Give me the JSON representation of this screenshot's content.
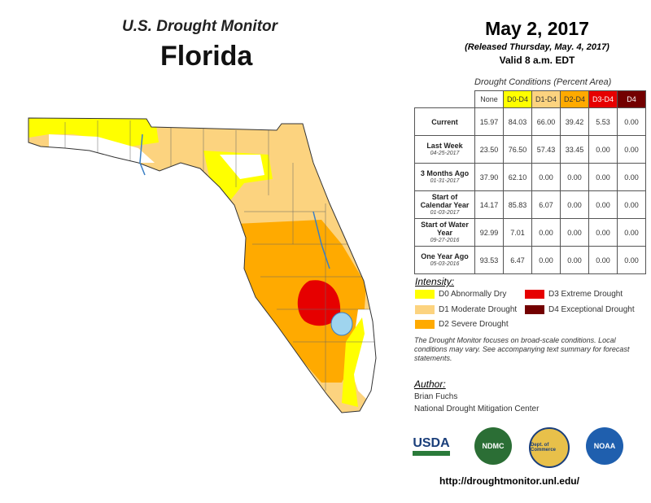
{
  "header": {
    "title": "U.S. Drought Monitor",
    "state": "Florida",
    "date": "May 2, 2017",
    "released": "(Released Thursday, May. 4, 2017)",
    "valid": "Valid 8 a.m. EDT"
  },
  "table": {
    "caption": "Drought Conditions (Percent Area)",
    "columns": [
      {
        "label": "None",
        "color": "#ffffff"
      },
      {
        "label": "D0-D4",
        "color": "#ffff00"
      },
      {
        "label": "D1-D4",
        "color": "#fcd37f"
      },
      {
        "label": "D2-D4",
        "color": "#ffaa00"
      },
      {
        "label": "D3-D4",
        "color": "#e60000"
      },
      {
        "label": "D4",
        "color": "#730000"
      }
    ],
    "rows": [
      {
        "label": "Current",
        "date": "",
        "values": [
          "15.97",
          "84.03",
          "66.00",
          "39.42",
          "5.53",
          "0.00"
        ]
      },
      {
        "label": "Last Week",
        "date": "04-25-2017",
        "values": [
          "23.50",
          "76.50",
          "57.43",
          "33.45",
          "0.00",
          "0.00"
        ]
      },
      {
        "label": "3 Months Ago",
        "date": "01-31-2017",
        "values": [
          "37.90",
          "62.10",
          "0.00",
          "0.00",
          "0.00",
          "0.00"
        ]
      },
      {
        "label": "Start of Calendar Year",
        "date": "01-03-2017",
        "values": [
          "14.17",
          "85.83",
          "6.07",
          "0.00",
          "0.00",
          "0.00"
        ]
      },
      {
        "label": "Start of Water Year",
        "date": "09-27-2016",
        "values": [
          "92.99",
          "7.01",
          "0.00",
          "0.00",
          "0.00",
          "0.00"
        ]
      },
      {
        "label": "One Year Ago",
        "date": "05-03-2016",
        "values": [
          "93.53",
          "6.47",
          "0.00",
          "0.00",
          "0.00",
          "0.00"
        ]
      }
    ]
  },
  "legend": {
    "title": "Intensity:",
    "items": [
      {
        "label": "D0 Abnormally Dry",
        "color": "#ffff00"
      },
      {
        "label": "D1 Moderate Drought",
        "color": "#fcd37f"
      },
      {
        "label": "D2 Severe Drought",
        "color": "#ffaa00"
      },
      {
        "label": "D3 Extreme Drought",
        "color": "#e60000"
      },
      {
        "label": "D4 Exceptional Drought",
        "color": "#730000"
      }
    ]
  },
  "note": "The Drought Monitor focuses on broad-scale conditions. Local conditions may vary. See accompanying text summary for forecast statements.",
  "author": {
    "title": "Author:",
    "name": "Brian Fuchs",
    "org": "National Drought Mitigation Center"
  },
  "logos": [
    {
      "name": "USDA"
    },
    {
      "name": "NDMC"
    },
    {
      "name": "Dept. of Commerce"
    },
    {
      "name": "NOAA"
    }
  ],
  "url": "http://droughtmonitor.unl.edu/"
}
